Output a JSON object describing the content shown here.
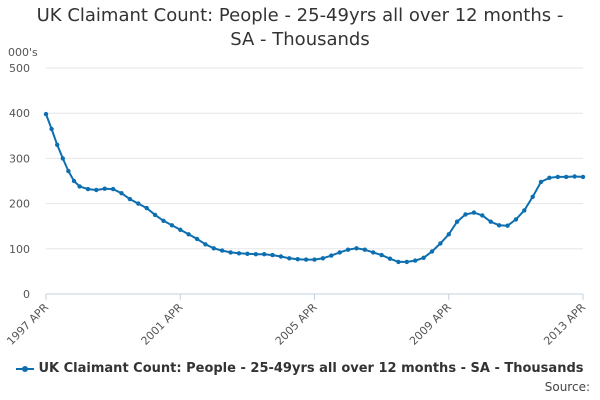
{
  "chart_data": {
    "type": "line",
    "title_line1": "UK Claimant Count: People - 25-49yrs all over 12 months -",
    "title_line2": "SA - Thousands",
    "ylabel": "000's",
    "ylim": [
      0,
      500
    ],
    "yticks": [
      0,
      100,
      200,
      300,
      400,
      500
    ],
    "x_tick_labels": [
      "1997 APR",
      "2001 APR",
      "2005 APR",
      "2009 APR",
      "2013 APR"
    ],
    "x_start": "1997 APR",
    "x_end": "2013 APR",
    "grid": true,
    "legend_position": "bottom",
    "series": [
      {
        "name": "UK Claimant Count: People - 25-49yrs all over 12 months - SA - Thousands",
        "color": "#0e6fb0",
        "points": [
          [
            "1997-04",
            398
          ],
          [
            "1997-06",
            365
          ],
          [
            "1997-08",
            330
          ],
          [
            "1997-10",
            300
          ],
          [
            "1997-12",
            272
          ],
          [
            "1998-02",
            250
          ],
          [
            "1998-04",
            238
          ],
          [
            "1998-07",
            232
          ],
          [
            "1998-10",
            230
          ],
          [
            "1999-01",
            233
          ],
          [
            "1999-04",
            232
          ],
          [
            "1999-07",
            223
          ],
          [
            "1999-10",
            210
          ],
          [
            "2000-01",
            200
          ],
          [
            "2000-04",
            190
          ],
          [
            "2000-07",
            175
          ],
          [
            "2000-10",
            162
          ],
          [
            "2001-01",
            152
          ],
          [
            "2001-04",
            142
          ],
          [
            "2001-07",
            132
          ],
          [
            "2001-10",
            122
          ],
          [
            "2002-01",
            110
          ],
          [
            "2002-04",
            101
          ],
          [
            "2002-07",
            96
          ],
          [
            "2002-10",
            92
          ],
          [
            "2003-01",
            90
          ],
          [
            "2003-04",
            89
          ],
          [
            "2003-07",
            88
          ],
          [
            "2003-10",
            88
          ],
          [
            "2004-01",
            86
          ],
          [
            "2004-04",
            83
          ],
          [
            "2004-07",
            79
          ],
          [
            "2004-10",
            77
          ],
          [
            "2005-01",
            76
          ],
          [
            "2005-04",
            76
          ],
          [
            "2005-07",
            79
          ],
          [
            "2005-10",
            85
          ],
          [
            "2006-01",
            92
          ],
          [
            "2006-04",
            98
          ],
          [
            "2006-07",
            101
          ],
          [
            "2006-10",
            98
          ],
          [
            "2007-01",
            92
          ],
          [
            "2007-04",
            86
          ],
          [
            "2007-07",
            78
          ],
          [
            "2007-10",
            71
          ],
          [
            "2008-01",
            71
          ],
          [
            "2008-04",
            74
          ],
          [
            "2008-07",
            80
          ],
          [
            "2008-10",
            94
          ],
          [
            "2009-01",
            112
          ],
          [
            "2009-04",
            132
          ],
          [
            "2009-07",
            160
          ],
          [
            "2009-10",
            176
          ],
          [
            "2010-01",
            180
          ],
          [
            "2010-04",
            174
          ],
          [
            "2010-07",
            160
          ],
          [
            "2010-10",
            152
          ],
          [
            "2011-01",
            151
          ],
          [
            "2011-04",
            165
          ],
          [
            "2011-07",
            185
          ],
          [
            "2011-10",
            215
          ],
          [
            "2012-01",
            248
          ],
          [
            "2012-04",
            257
          ],
          [
            "2012-07",
            259
          ],
          [
            "2012-10",
            259
          ],
          [
            "2013-01",
            260
          ],
          [
            "2013-04",
            259
          ]
        ]
      }
    ]
  },
  "footer": {
    "source_label": "Source:"
  }
}
